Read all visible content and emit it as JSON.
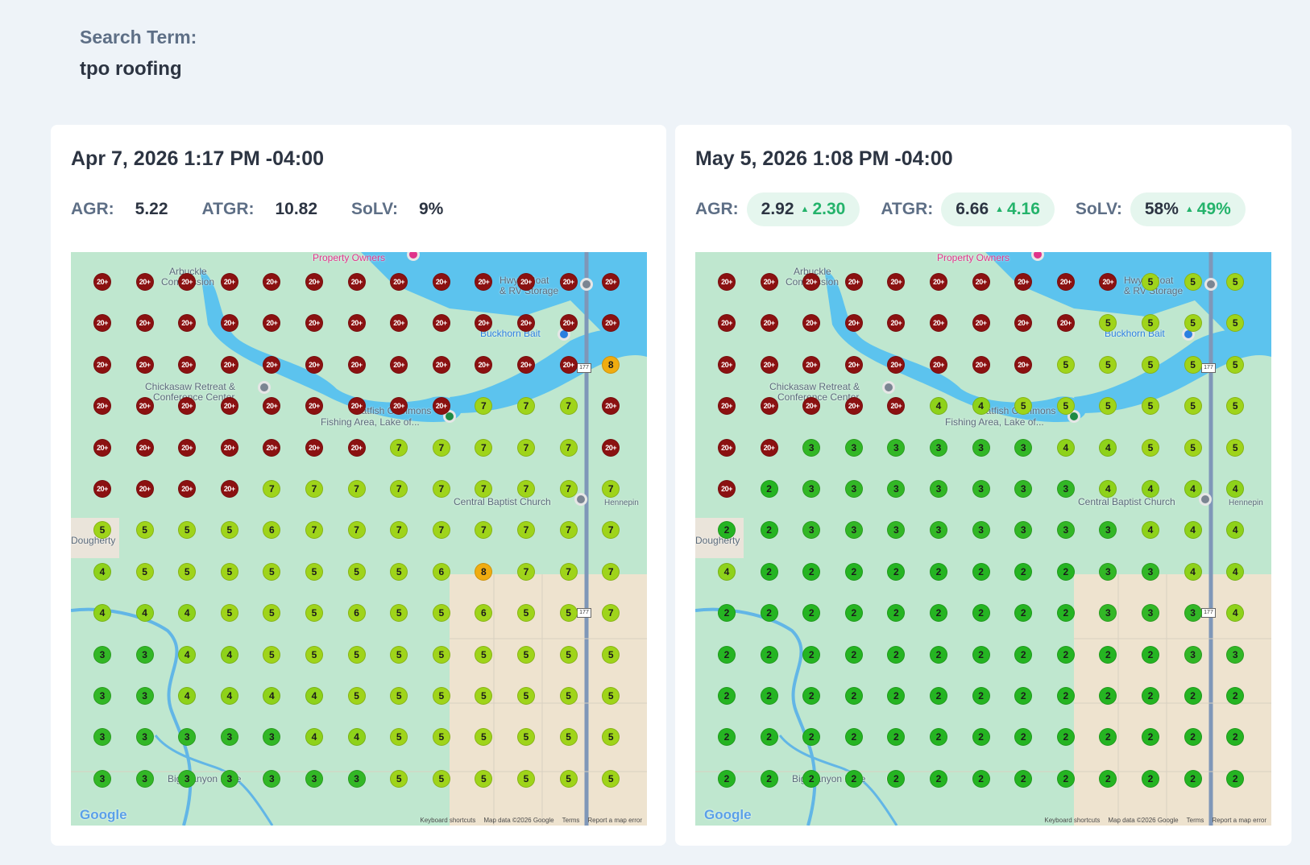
{
  "search": {
    "label": "Search Term:",
    "term": "tpo roofing"
  },
  "columns": [
    0,
    1,
    2,
    3,
    4,
    5,
    6,
    7,
    8,
    9,
    10,
    11,
    12
  ],
  "panels": [
    {
      "date": "Apr 7, 2026 1:17 PM -04:00",
      "metrics": [
        {
          "label": "AGR:",
          "value": "5.22"
        },
        {
          "label": "ATGR:",
          "value": "10.82"
        },
        {
          "label": "SoLV:",
          "value": "9%"
        }
      ],
      "grid": [
        [
          "20+",
          "20+",
          "20+",
          "20+",
          "20+",
          "20+",
          "20+",
          "20+",
          "20+",
          "20+",
          "20+",
          "20+",
          "20+"
        ],
        [
          "20+",
          "20+",
          "20+",
          "20+",
          "20+",
          "20+",
          "20+",
          "20+",
          "20+",
          "20+",
          "20+",
          "20+",
          "20+"
        ],
        [
          "20+",
          "20+",
          "20+",
          "20+",
          "20+",
          "20+",
          "20+",
          "20+",
          "20+",
          "20+",
          "20+",
          "20+",
          "8"
        ],
        [
          "20+",
          "20+",
          "20+",
          "20+",
          "20+",
          "20+",
          "20+",
          "20+",
          "20+",
          "7",
          "7",
          "7",
          "20+"
        ],
        [
          "20+",
          "20+",
          "20+",
          "20+",
          "20+",
          "20+",
          "20+",
          "7",
          "7",
          "7",
          "7",
          "7",
          "20+"
        ],
        [
          "20+",
          "20+",
          "20+",
          "20+",
          "7",
          "7",
          "7",
          "7",
          "7",
          "7",
          "7",
          "7",
          "7"
        ],
        [
          "5",
          "5",
          "5",
          "5",
          "6",
          "7",
          "7",
          "7",
          "7",
          "7",
          "7",
          "7",
          "7"
        ],
        [
          "4",
          "5",
          "5",
          "5",
          "5",
          "5",
          "5",
          "5",
          "6",
          "8",
          "7",
          "7",
          "7"
        ],
        [
          "4",
          "4",
          "4",
          "5",
          "5",
          "5",
          "6",
          "5",
          "5",
          "6",
          "5",
          "5",
          "7"
        ],
        [
          "3",
          "3",
          "4",
          "4",
          "5",
          "5",
          "5",
          "5",
          "5",
          "5",
          "5",
          "5",
          "5"
        ],
        [
          "3",
          "3",
          "4",
          "4",
          "4",
          "4",
          "5",
          "5",
          "5",
          "5",
          "5",
          "5",
          "5"
        ],
        [
          "3",
          "3",
          "3",
          "3",
          "3",
          "4",
          "4",
          "5",
          "5",
          "5",
          "5",
          "5",
          "5"
        ],
        [
          "3",
          "3",
          "3",
          "3",
          "3",
          "3",
          "3",
          "5",
          "5",
          "5",
          "5",
          "5",
          "5"
        ]
      ]
    },
    {
      "date": "May 5, 2026 1:08 PM -04:00",
      "metrics": [
        {
          "label": "AGR:",
          "value": "2.92",
          "delta": "2.30"
        },
        {
          "label": "ATGR:",
          "value": "6.66",
          "delta": "4.16"
        },
        {
          "label": "SoLV:",
          "value": "58%",
          "delta": "49%"
        }
      ],
      "grid": [
        [
          "20+",
          "20+",
          "20+",
          "20+",
          "20+",
          "20+",
          "20+",
          "20+",
          "20+",
          "20+",
          "5",
          "5",
          "5"
        ],
        [
          "20+",
          "20+",
          "20+",
          "20+",
          "20+",
          "20+",
          "20+",
          "20+",
          "20+",
          "5",
          "5",
          "5",
          "5"
        ],
        [
          "20+",
          "20+",
          "20+",
          "20+",
          "20+",
          "20+",
          "20+",
          "20+",
          "5",
          "5",
          "5",
          "5",
          "5"
        ],
        [
          "20+",
          "20+",
          "20+",
          "20+",
          "20+",
          "4",
          "4",
          "5",
          "5",
          "5",
          "5",
          "5",
          "5"
        ],
        [
          "20+",
          "20+",
          "3",
          "3",
          "3",
          "3",
          "3",
          "3",
          "4",
          "4",
          "5",
          "5",
          "5"
        ],
        [
          "20+",
          "2",
          "3",
          "3",
          "3",
          "3",
          "3",
          "3",
          "3",
          "4",
          "4",
          "4",
          "4"
        ],
        [
          "2",
          "2",
          "3",
          "3",
          "3",
          "3",
          "3",
          "3",
          "3",
          "3",
          "4",
          "4",
          "4"
        ],
        [
          "4",
          "2",
          "2",
          "2",
          "2",
          "2",
          "2",
          "2",
          "2",
          "3",
          "3",
          "4",
          "4"
        ],
        [
          "2",
          "2",
          "2",
          "2",
          "2",
          "2",
          "2",
          "2",
          "2",
          "3",
          "3",
          "3",
          "4"
        ],
        [
          "2",
          "2",
          "2",
          "2",
          "2",
          "2",
          "2",
          "2",
          "2",
          "2",
          "2",
          "3",
          "3"
        ],
        [
          "2",
          "2",
          "2",
          "2",
          "2",
          "2",
          "2",
          "2",
          "2",
          "2",
          "2",
          "2",
          "2"
        ],
        [
          "2",
          "2",
          "2",
          "2",
          "2",
          "2",
          "2",
          "2",
          "2",
          "2",
          "2",
          "2",
          "2"
        ],
        [
          "2",
          "2",
          "2",
          "2",
          "2",
          "2",
          "2",
          "2",
          "2",
          "2",
          "2",
          "2",
          "2"
        ]
      ]
    }
  ],
  "map": {
    "labels": {
      "property_owners": "Property Owners",
      "arbuckle_1": "Arbuckle",
      "arbuckle_2": "Commission",
      "hwy_1": "Hwy 7 Boat",
      "hwy_2": "& RV Storage",
      "buckhorn": "Buckhorn Bait",
      "chickasaw_1": "Chickasaw Retreat &",
      "chickasaw_2": "Conference Center",
      "catfish_1": "Catfish Commons",
      "catfish_2": "Fishing Area, Lake of...",
      "central_baptist": "Central Baptist Church",
      "hennepin": "Hennepin",
      "dougherty": "Dougherty",
      "big_canyon": "Big Canyon Lake",
      "hwy_shield": "177"
    },
    "google": "Google",
    "attribution": [
      "Keyboard shortcuts",
      "Map data ©2026 Google",
      "Terms",
      "Report a map error"
    ]
  },
  "colors": {
    "rank_20_plus": "#8b1111",
    "rank_8": "#f0ac10",
    "rank_5_to_7": "#9fd41a",
    "rank_4": "#8ed21a",
    "rank_2_to_3": "#25b422",
    "delta_green": "#24b36b"
  }
}
